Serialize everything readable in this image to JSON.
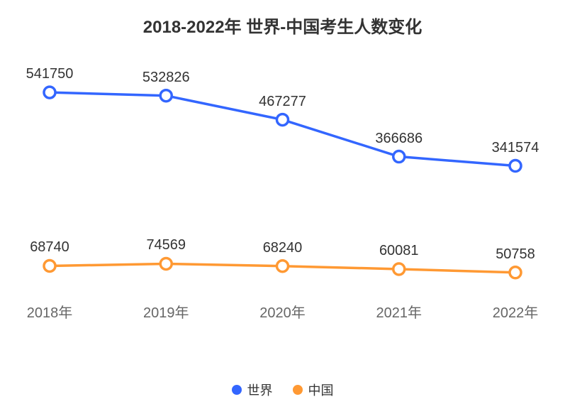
{
  "title": "2018-2022年 世界-中国考生人数变化",
  "chart": {
    "type": "line",
    "background_color": "#ffffff",
    "title_fontsize": 24,
    "title_fontweight": 700,
    "label_fontsize": 20,
    "xtick_fontsize": 20,
    "legend_fontsize": 18,
    "text_color": "#333333",
    "xtick_color": "#666666",
    "line_width": 3.5,
    "marker_outer_radius": 8,
    "marker_inner_color": "#ffffff",
    "marker_stroke_width": 3.5,
    "ylim": [
      0,
      600000
    ],
    "categories": [
      "2018年",
      "2019年",
      "2020年",
      "2021年",
      "2022年"
    ],
    "series": [
      {
        "name": "世界",
        "color": "#3366ff",
        "values": [
          541750,
          532826,
          467277,
          366686,
          341574
        ],
        "labels": [
          "541750",
          "532826",
          "467277",
          "366686",
          "341574"
        ]
      },
      {
        "name": "中国",
        "color": "#ff9933",
        "values": [
          68740,
          74569,
          68240,
          60081,
          50758
        ],
        "labels": [
          "68740",
          "74569",
          "68240",
          "60081",
          "50758"
        ]
      }
    ],
    "legend_position": "bottom-center"
  }
}
